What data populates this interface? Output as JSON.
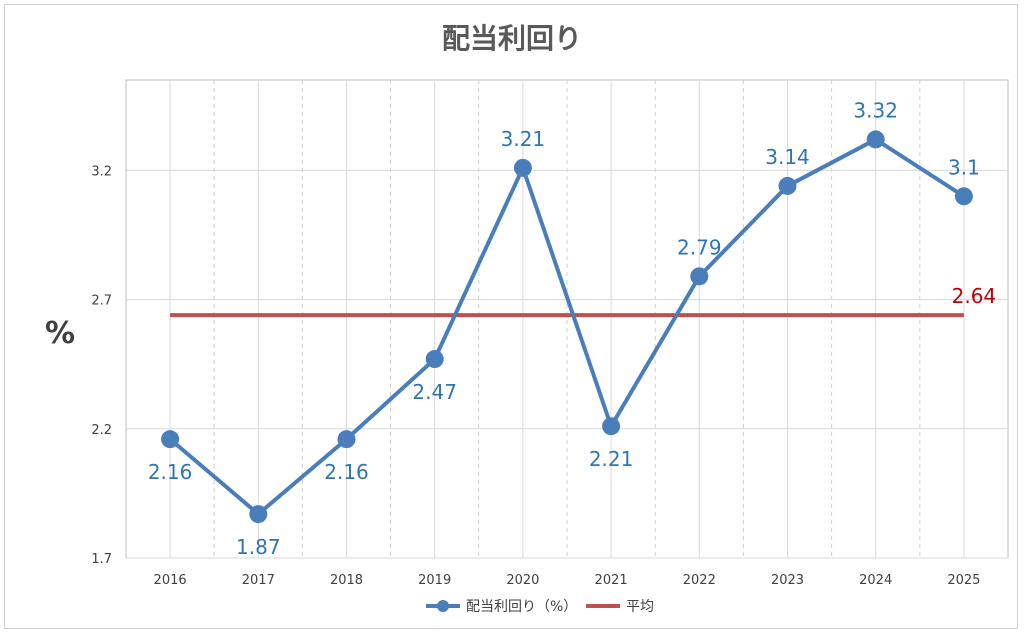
{
  "chart_data": {
    "type": "line",
    "title": "配当利回り",
    "xlabel": "",
    "ylabel": "%",
    "categories": [
      "2016",
      "2017",
      "2018",
      "2019",
      "2020",
      "2021",
      "2022",
      "2023",
      "2024",
      "2025"
    ],
    "yticks": [
      "1.7",
      "2.2",
      "2.7",
      "3.2"
    ],
    "ylim": [
      1.7,
      3.55
    ],
    "grid": "vertical dashed and horizontal solid",
    "legend_position": "bottom",
    "series": [
      {
        "name": "配当利回り（%）",
        "color": "#4a7ebb",
        "marker": "circle",
        "values": [
          2.16,
          1.87,
          2.16,
          2.47,
          3.21,
          2.21,
          2.79,
          3.14,
          3.32,
          3.1
        ],
        "labels": [
          "2.16",
          "1.87",
          "2.16",
          "2.47",
          "3.21",
          "2.21",
          "2.79",
          "3.14",
          "3.32",
          "3.1"
        ]
      },
      {
        "name": "平均",
        "color": "#c0504d",
        "marker": "none",
        "values": [
          2.64,
          2.64,
          2.64,
          2.64,
          2.64,
          2.64,
          2.64,
          2.64,
          2.64,
          2.64
        ],
        "labels": [
          "2.64"
        ]
      }
    ]
  }
}
